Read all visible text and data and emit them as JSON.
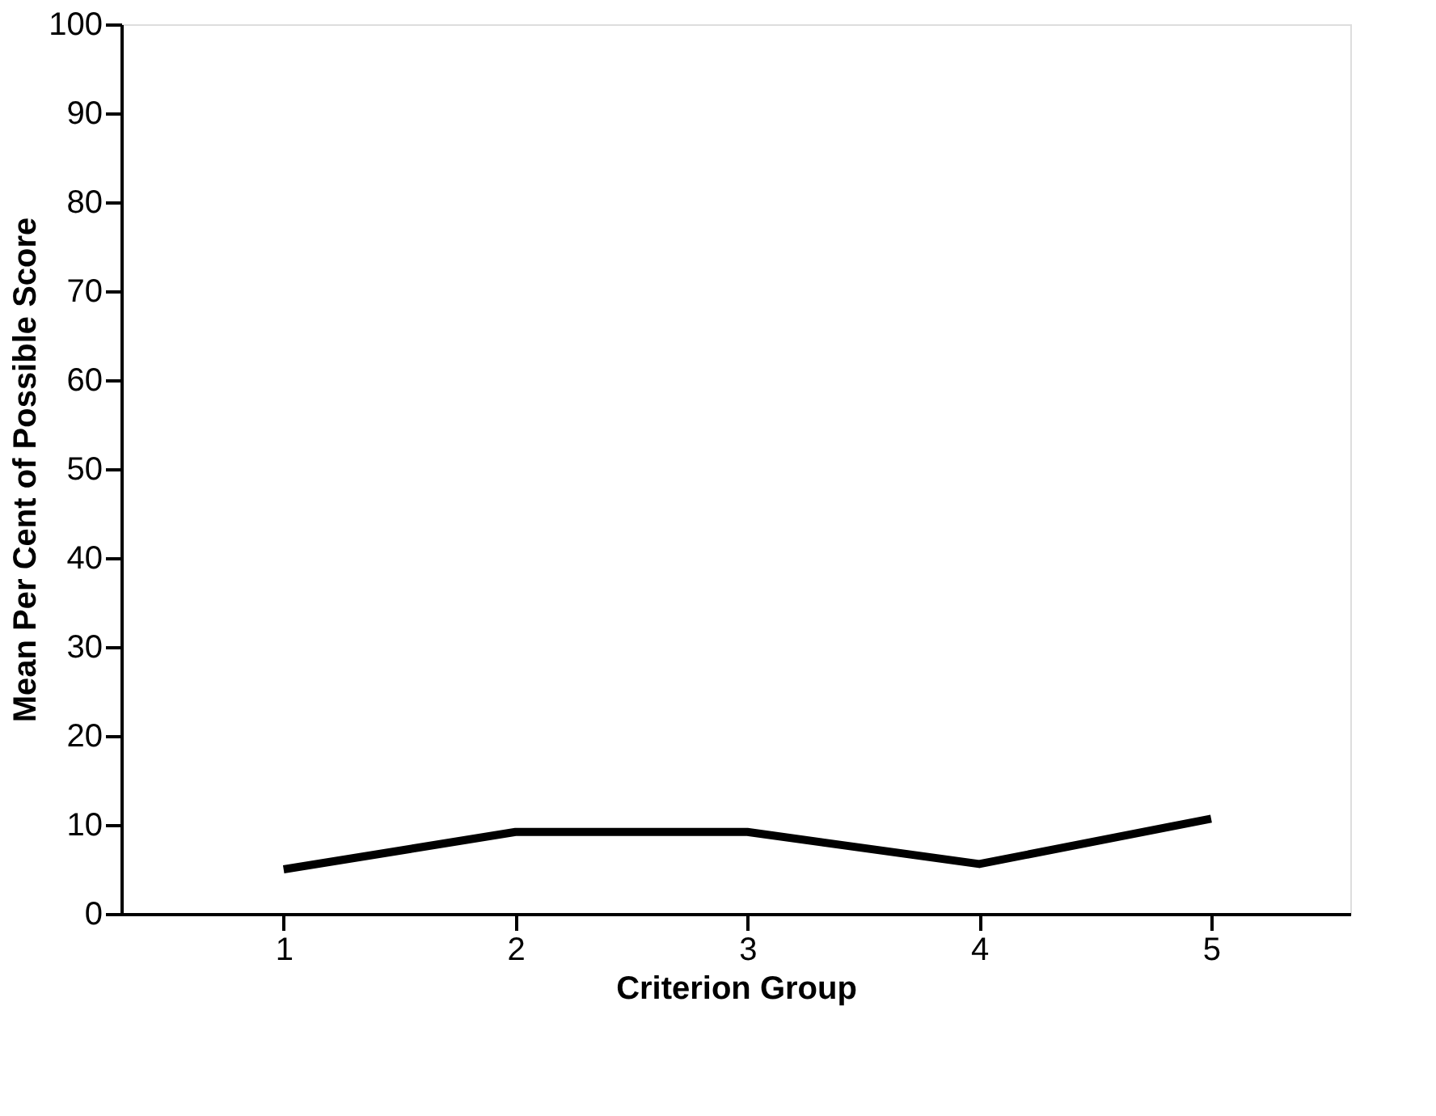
{
  "chart_data": {
    "type": "line",
    "xlabel": "Criterion Group",
    "ylabel": "Mean Per Cent of Possible Score",
    "x": [
      1,
      2,
      3,
      4,
      5
    ],
    "series": [
      {
        "color": "#000000",
        "values": [
          5.0,
          9.2,
          9.2,
          5.6,
          10.7
        ]
      }
    ],
    "xlim": [
      0.3,
      5.6
    ],
    "xticks": [
      1,
      2,
      3,
      4,
      5
    ],
    "ylim": [
      0,
      100
    ],
    "yticks": [
      0,
      10,
      20,
      30,
      40,
      50,
      60,
      70,
      80,
      90,
      100
    ],
    "grid": false,
    "legend": false,
    "marker": "none",
    "line_style": "solid"
  }
}
